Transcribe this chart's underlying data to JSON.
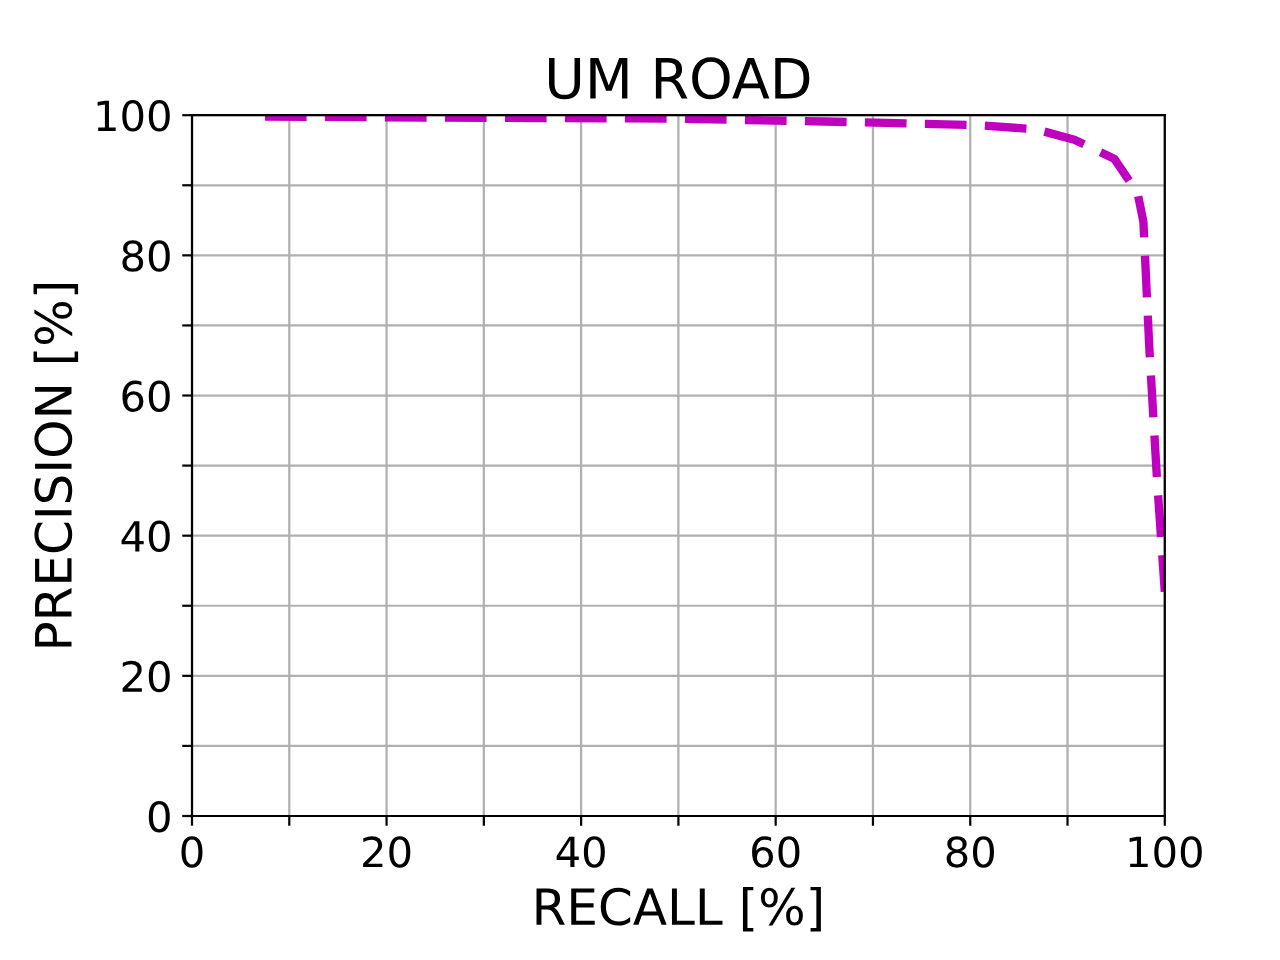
{
  "chart_data": {
    "type": "line",
    "title": "UM ROAD",
    "xlabel": "RECALL [%]",
    "ylabel": "PRECISION [%]",
    "series": [
      {
        "color": "#bf00bf",
        "x": [
          7.5,
          20,
          35,
          50,
          65,
          80.6,
          86.7,
          90.7,
          94.8,
          97.2,
          97.8,
          98.4,
          99.2,
          100
        ],
        "values": [
          99.8,
          99.7,
          99.6,
          99.5,
          99.1,
          98.6,
          98,
          96.5,
          93.8,
          88.9,
          84.8,
          67,
          48,
          32
        ]
      }
    ],
    "xlim": [
      0,
      100
    ],
    "ylim": [
      0,
      100
    ],
    "xticks": [
      0,
      {
        "value": 10,
        "label": null
      },
      20,
      {
        "value": 30,
        "label": null
      },
      40,
      {
        "value": 50,
        "label": null
      },
      60,
      {
        "value": 70,
        "label": null
      },
      80,
      {
        "value": 90,
        "label": null
      },
      100
    ],
    "yticks": [
      0,
      {
        "value": 10,
        "label": null
      },
      20,
      {
        "value": 30,
        "label": null
      },
      40,
      {
        "value": 50,
        "label": null
      },
      60,
      {
        "value": 70,
        "label": null
      },
      80,
      {
        "value": 90,
        "label": null
      },
      100
    ],
    "grid": true,
    "line_style": "dashed",
    "marker": "none",
    "legend": false
  }
}
